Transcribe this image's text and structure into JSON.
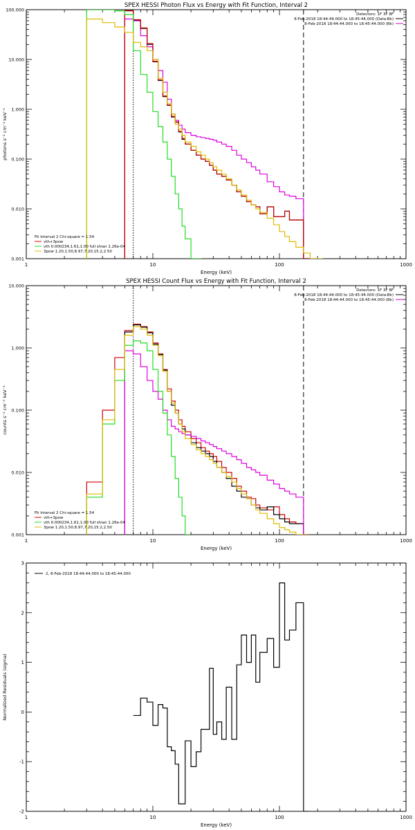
{
  "colors": {
    "black": "#000000",
    "red": "#cc0000",
    "green": "#22dd22",
    "yellow": "#ddbb00",
    "magenta": "#dd00dd"
  },
  "chart_data": [
    {
      "type": "line",
      "title": "SPEX HESSI Photon Flux vs Energy with Fit Function, Interval 2",
      "xlabel": "Energy (keV)",
      "ylabel": "photons s⁻¹ cm⁻² keV⁻¹",
      "xscale": "log",
      "yscale": "log",
      "xlim": [
        1,
        1000
      ],
      "ylim": [
        0.001,
        100
      ],
      "x_ticks": [
        "1",
        "10",
        "100",
        "1000"
      ],
      "y_ticks": [
        "0.001",
        "0.010",
        "0.100",
        "1.000",
        "10.000",
        "100.000"
      ],
      "legend_top_right": [
        "Detectors: 1F 3F 8F",
        "8-Feb-2018 18:44:44.000 to 18:45:44.000 (Data-Bk)",
        "8-Feb-2018 18:44:44.000 to 18:45:44.000 (Bk)"
      ],
      "legend_bottom_left": [
        "Fit Interval 2   Chi-square = 1.54",
        "vth+3pow",
        "vth 0.000234,1.61,1.00   full shian 1.26e-04",
        "3pow 1.20,1.50,8.97,7.20,15.2,2.50"
      ],
      "vlines": [
        {
          "x": 7,
          "style": "dotted"
        },
        {
          "x": 155,
          "style": "dashed"
        }
      ],
      "series": [
        {
          "style": "step",
          "color": "magenta",
          "x": [
            6,
            7,
            8,
            9,
            10,
            11,
            12,
            13,
            14,
            15,
            16,
            17,
            18,
            20,
            22,
            24,
            26,
            28,
            30,
            32,
            35,
            38,
            42,
            46,
            50,
            55,
            60,
            65,
            70,
            80,
            90,
            100,
            110,
            120,
            135,
            155
          ],
          "y": [
            65,
            60,
            30,
            18,
            10,
            6,
            3.5,
            1.6,
            0.8,
            0.6,
            0.48,
            0.4,
            0.34,
            0.3,
            0.28,
            0.27,
            0.26,
            0.25,
            0.24,
            0.22,
            0.2,
            0.18,
            0.15,
            0.12,
            0.1,
            0.085,
            0.07,
            0.06,
            0.05,
            0.035,
            0.028,
            0.022,
            0.019,
            0.018,
            0.016,
            0.001
          ]
        },
        {
          "style": "step",
          "color": "black",
          "x": [
            6,
            7,
            8,
            9,
            10,
            11,
            12,
            13,
            14,
            15,
            16,
            17,
            18,
            20,
            22,
            24,
            26,
            28,
            30,
            32,
            35,
            38,
            42,
            46,
            50,
            55,
            60,
            65,
            70,
            80,
            90,
            100,
            110,
            120,
            135,
            155
          ],
          "y": [
            95,
            62,
            42,
            20,
            9,
            3.8,
            1.8,
            1.2,
            0.7,
            0.55,
            0.35,
            0.25,
            0.2,
            0.15,
            0.12,
            0.1,
            0.09,
            0.075,
            0.06,
            0.05,
            0.045,
            0.038,
            0.03,
            0.022,
            0.018,
            0.014,
            0.012,
            0.011,
            0.008,
            0.011,
            0.007,
            0.007,
            0.009,
            0.006,
            0.006,
            0.001
          ]
        },
        {
          "style": "step",
          "color": "red",
          "x": [
            6,
            7,
            8,
            9,
            10,
            11,
            12,
            13,
            14,
            15,
            16,
            17,
            18,
            20,
            22,
            24,
            26,
            28,
            30,
            32,
            35,
            38,
            42,
            46,
            50,
            55,
            60,
            65,
            70,
            80,
            90,
            100,
            110,
            120,
            135,
            155
          ],
          "y": [
            96,
            63,
            43,
            21,
            9.2,
            3.9,
            1.85,
            1.22,
            0.72,
            0.56,
            0.36,
            0.26,
            0.2,
            0.15,
            0.12,
            0.1,
            0.09,
            0.075,
            0.06,
            0.05,
            0.045,
            0.038,
            0.03,
            0.022,
            0.018,
            0.014,
            0.012,
            0.011,
            0.008,
            0.011,
            0.007,
            0.007,
            0.009,
            0.006,
            0.006,
            0.001
          ]
        },
        {
          "style": "step",
          "color": "green",
          "x": [
            3,
            4,
            5,
            6,
            7,
            8,
            9,
            10,
            11,
            12,
            13,
            14,
            15,
            16,
            17,
            18,
            20,
            22
          ],
          "y": [
            100,
            100,
            95,
            80,
            15,
            5,
            2.2,
            0.9,
            0.45,
            0.22,
            0.1,
            0.045,
            0.02,
            0.01,
            0.0045,
            0.0025,
            0.001,
            0.001
          ]
        },
        {
          "style": "step",
          "color": "yellow",
          "x": [
            3,
            4,
            5,
            6,
            7,
            8,
            9,
            10,
            11,
            12,
            13,
            14,
            15,
            16,
            17,
            18,
            20,
            22,
            24,
            26,
            28,
            30,
            32,
            35,
            38,
            42,
            46,
            50,
            55,
            60,
            65,
            70,
            80,
            90,
            100,
            110,
            120,
            135,
            155,
            175,
            200
          ],
          "y": [
            65,
            55,
            45,
            35,
            22,
            18,
            15,
            10,
            4.2,
            2.2,
            1.3,
            0.8,
            0.5,
            0.4,
            0.3,
            0.22,
            0.18,
            0.14,
            0.12,
            0.1,
            0.085,
            0.07,
            0.06,
            0.05,
            0.04,
            0.03,
            0.024,
            0.019,
            0.015,
            0.012,
            0.01,
            0.0085,
            0.0065,
            0.0048,
            0.0035,
            0.0028,
            0.0022,
            0.0017,
            0.0013,
            0.001,
            0.001
          ]
        }
      ]
    },
    {
      "type": "line",
      "title": "SPEX HESSI Count Flux vs Energy with Fit Function, Interval 2",
      "xlabel": "Energy (keV)",
      "ylabel": "counts s⁻¹ cm⁻² keV⁻¹",
      "xscale": "log",
      "yscale": "log",
      "xlim": [
        1,
        1000
      ],
      "ylim": [
        0.001,
        10
      ],
      "x_ticks": [
        "1",
        "10",
        "100",
        "1000"
      ],
      "y_ticks": [
        "0.001",
        "0.010",
        "0.100",
        "1.000",
        "10.000"
      ],
      "legend_top_right": [
        "Detectors: 1F 3F 8F",
        "8-Feb-2018 18:44:44.000 to 18:45:44.000 (Data-Bk)",
        "8-Feb-2018 18:44:44.000 to 18:45:44.000 (Bk)"
      ],
      "legend_bottom_left": [
        "Fit Interval 2   Chi-square = 1.54",
        "vth+3pow",
        "vth 0.000234,1.61,1.00   full shian 1.26e-04",
        "3pow 1.20,1.50,8.97,7.20,15.2,2.50"
      ],
      "vlines": [
        {
          "x": 7,
          "style": "dotted"
        },
        {
          "x": 155,
          "style": "dashed"
        }
      ],
      "series": [
        {
          "style": "step",
          "color": "red",
          "x": [
            3,
            4,
            5,
            6,
            7,
            8,
            9,
            10,
            11,
            12,
            13,
            14,
            15,
            16,
            17,
            18,
            20,
            22,
            24,
            26,
            28,
            30,
            32,
            35,
            38,
            42,
            46,
            50,
            55,
            60,
            65,
            70,
            80,
            90,
            100,
            110,
            120,
            135,
            155
          ],
          "y": [
            0.007,
            0.1,
            0.7,
            1.9,
            2.4,
            2.2,
            1.8,
            1.2,
            0.8,
            0.45,
            0.22,
            0.14,
            0.1,
            0.07,
            0.055,
            0.045,
            0.035,
            0.03,
            0.025,
            0.022,
            0.02,
            0.018,
            0.015,
            0.012,
            0.01,
            0.008,
            0.006,
            0.005,
            0.004,
            0.0038,
            0.003,
            0.0027,
            0.0025,
            0.0028,
            0.0021,
            0.0018,
            0.0016,
            0.0015,
            0.001
          ]
        },
        {
          "style": "step",
          "color": "black",
          "x": [
            6,
            7,
            8,
            9,
            10,
            11,
            12,
            13,
            14,
            15,
            16,
            17,
            18,
            20,
            22,
            24,
            26,
            28,
            30,
            32,
            35,
            38,
            42,
            46,
            50,
            55,
            60,
            65,
            70,
            80,
            90,
            100,
            110,
            120,
            135,
            155
          ],
          "y": [
            1.8,
            2.35,
            2.15,
            1.75,
            1.15,
            0.78,
            0.44,
            0.2,
            0.12,
            0.09,
            0.06,
            0.05,
            0.04,
            0.03,
            0.025,
            0.022,
            0.02,
            0.018,
            0.015,
            0.012,
            0.01,
            0.008,
            0.006,
            0.005,
            0.004,
            0.0038,
            0.003,
            0.0027,
            0.0025,
            0.0028,
            0.0021,
            0.0018,
            0.0016,
            0.0015,
            0.0015,
            0.001
          ]
        },
        {
          "style": "step",
          "color": "magenta",
          "x": [
            6,
            7,
            8,
            9,
            10,
            11,
            12,
            13,
            14,
            15,
            16,
            17,
            18,
            20,
            22,
            24,
            26,
            28,
            30,
            32,
            35,
            38,
            42,
            46,
            50,
            55,
            60,
            65,
            70,
            80,
            90,
            100,
            110,
            120,
            135,
            155
          ],
          "y": [
            0.9,
            0.8,
            0.5,
            0.3,
            0.2,
            0.15,
            0.1,
            0.07,
            0.055,
            0.05,
            0.045,
            0.042,
            0.04,
            0.038,
            0.035,
            0.032,
            0.03,
            0.028,
            0.026,
            0.024,
            0.022,
            0.02,
            0.018,
            0.016,
            0.014,
            0.012,
            0.011,
            0.01,
            0.009,
            0.0075,
            0.0065,
            0.0055,
            0.005,
            0.0045,
            0.004,
            0.001
          ]
        },
        {
          "style": "step",
          "color": "green",
          "x": [
            3,
            4,
            5,
            6,
            7,
            8,
            9,
            10,
            11,
            12,
            13,
            14,
            15,
            16,
            17,
            18
          ],
          "y": [
            0.004,
            0.06,
            0.3,
            1.1,
            1.3,
            1.2,
            0.9,
            0.45,
            0.2,
            0.09,
            0.04,
            0.018,
            0.008,
            0.004,
            0.002,
            0.001
          ]
        },
        {
          "style": "step",
          "color": "yellow",
          "x": [
            3,
            4,
            5,
            6,
            7,
            8,
            9,
            10,
            11,
            12,
            13,
            14,
            15,
            16,
            17,
            18,
            20,
            22,
            24,
            26,
            28,
            30,
            32,
            35,
            38,
            42,
            46,
            50,
            55,
            60,
            65,
            70,
            80,
            90,
            100,
            110,
            120,
            135,
            155
          ],
          "y": [
            0.0045,
            0.07,
            0.45,
            1.6,
            2.2,
            2.0,
            1.6,
            1.1,
            0.75,
            0.42,
            0.2,
            0.13,
            0.09,
            0.06,
            0.045,
            0.035,
            0.028,
            0.023,
            0.02,
            0.018,
            0.016,
            0.014,
            0.012,
            0.01,
            0.0085,
            0.007,
            0.0055,
            0.0045,
            0.0038,
            0.003,
            0.0025,
            0.0022,
            0.0018,
            0.0015,
            0.0013,
            0.0012,
            0.0011,
            0.001,
            0.001
          ]
        }
      ]
    },
    {
      "type": "line",
      "title": "",
      "xlabel": "Energy (keV)",
      "ylabel": "Normalized Residuals (sigma)",
      "xscale": "log",
      "yscale": "linear",
      "xlim": [
        1,
        1000
      ],
      "ylim": [
        -2,
        3
      ],
      "x_ticks": [
        "1",
        "10",
        "100",
        "1000"
      ],
      "y_ticks": [
        "-2",
        "-1",
        "0",
        "1",
        "2",
        "3"
      ],
      "legend_top_left": [
        "2,  8-Feb-2018 18:44:44.000 to 18:45:44.000"
      ],
      "series": [
        {
          "style": "step",
          "color": "black",
          "x": [
            7,
            8,
            9,
            10,
            11,
            12,
            13,
            14,
            15,
            16,
            17,
            18,
            20,
            22,
            24,
            26,
            28,
            30,
            32,
            35,
            38,
            42,
            46,
            50,
            55,
            60,
            65,
            70,
            80,
            90,
            100,
            110,
            120,
            135,
            155
          ],
          "y": [
            -0.07,
            0.28,
            0.2,
            -0.27,
            0.15,
            0.08,
            -0.7,
            -0.78,
            -1.05,
            -1.85,
            -1.85,
            -0.58,
            -1.1,
            -0.8,
            -0.35,
            -0.35,
            0.88,
            -0.45,
            -0.2,
            -0.55,
            0.5,
            -0.55,
            0.95,
            1.55,
            1.0,
            1.55,
            0.6,
            1.2,
            1.48,
            0.9,
            2.6,
            1.45,
            1.65,
            2.2,
            -2
          ]
        }
      ]
    }
  ]
}
